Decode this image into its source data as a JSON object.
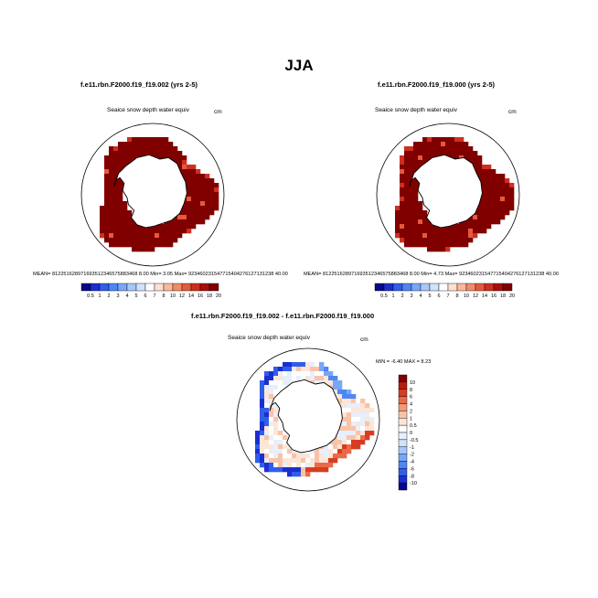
{
  "figure": {
    "title": "JJA"
  },
  "colors": {
    "abs_scale": [
      "#08088c",
      "#1c2ed1",
      "#2f5ee8",
      "#4e86f2",
      "#7aa6f7",
      "#a7c7fa",
      "#d0e2fc",
      "#ffffff",
      "#fde0d1",
      "#f9b99a",
      "#f28b66",
      "#e55a3c",
      "#cf2f1f",
      "#a80f0b",
      "#800000"
    ],
    "diff_scale": [
      "#08088c",
      "#1c2ed1",
      "#2f5ee8",
      "#4e86f2",
      "#7aa6f7",
      "#a7c7fa",
      "#d0e2fc",
      "#e6effd",
      "#ffffff",
      "#fde5d8",
      "#f9c3a8",
      "#f49a78",
      "#ea6a48",
      "#d73c22",
      "#b71e10",
      "#800000"
    ],
    "land": "#ffffff",
    "ice_high": "#8b0000"
  },
  "chart_data": [
    {
      "type": "heatmap",
      "title": "f.e11.rbn.F2000.f19_f19.002 (yrs 2-5)",
      "variable": "Seaice snow depth water equiv",
      "units": "cm",
      "stats": "MEAN= 812251628971693512346575883468 8.00   Min=   3.05  Max= 923460231547715404276127131238 40.00",
      "colorbar_labels": [
        "0.5",
        "1",
        "2",
        "3",
        "4",
        "5",
        "6",
        "7",
        "8",
        "10",
        "12",
        "14",
        "16",
        "18",
        "20"
      ]
    },
    {
      "type": "heatmap",
      "title": "f.e11.rbn.F2000.f19_f19.000 (yrs 2-5)",
      "variable": "Seaice snow depth water equiv",
      "units": "cm",
      "stats": "MEAN= 812251628971693512346575883468 8.00   Min=   4.73  Max= 923460231547715404276127131238 40.00",
      "colorbar_labels": [
        "0.5",
        "1",
        "2",
        "3",
        "4",
        "5",
        "6",
        "7",
        "8",
        "10",
        "12",
        "14",
        "16",
        "18",
        "20"
      ]
    },
    {
      "type": "heatmap",
      "title": "f.e11.rbn.F2000.f19_f19.002 - f.e11.rbn.F2000.f19_f19.000",
      "variable": "Seaice snow depth water equiv",
      "units": "cm",
      "stats": "MIN =  -6.40  MAX =   8.23",
      "colorbar_labels": [
        "10",
        "8",
        "6",
        "4",
        "2",
        "1",
        "0.5",
        "0",
        "-0.5",
        "-1",
        "-2",
        "-4",
        "-6",
        "-8",
        "-10"
      ]
    }
  ]
}
